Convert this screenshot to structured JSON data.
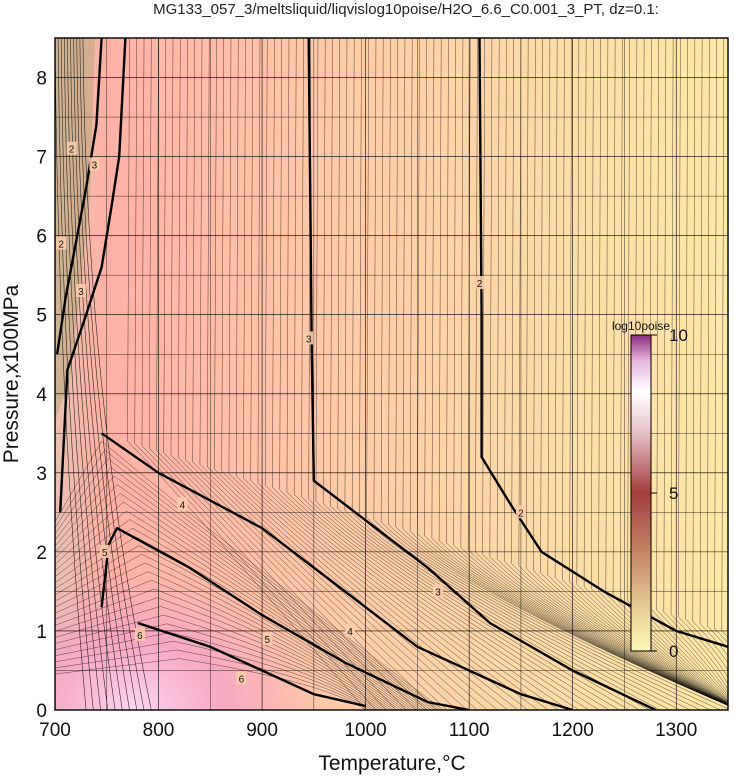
{
  "chart_data": {
    "type": "contour",
    "title": "MG133_057_3/meltsliquid/liqvislog10poise/H2O_6.6_C0.001_3_PT, dz=0.1:",
    "xlabel": "Temperature,°C",
    "ylabel": "Pressure,x100MPa",
    "xlim": [
      700,
      1350
    ],
    "ylim": [
      0,
      8.5
    ],
    "xticks": [
      "700",
      "800",
      "900",
      "1000",
      "1100",
      "1200",
      "1300"
    ],
    "yticks": [
      "0",
      "1",
      "2",
      "3",
      "4",
      "5",
      "6",
      "7",
      "8"
    ],
    "grid": true,
    "colorbar": {
      "label": "log10poise",
      "range": [
        0,
        10
      ],
      "ticks": [
        "0",
        "5",
        "10"
      ],
      "colors": [
        "#f5f0a0",
        "#8a2a2a",
        "#ffffff",
        "#7a1a6a"
      ]
    },
    "major_contours": [
      {
        "level": 2,
        "points": [
          [
            1110,
            8.5
          ],
          [
            1112,
            5.0
          ],
          [
            1112,
            3.2
          ],
          [
            1140,
            2.6
          ],
          [
            1170,
            2.0
          ],
          [
            1230,
            1.5
          ],
          [
            1300,
            1.0
          ],
          [
            1350,
            0.8
          ]
        ]
      },
      {
        "level": 3,
        "points": [
          [
            945,
            8.5
          ],
          [
            948,
            4.5
          ],
          [
            950,
            2.9
          ],
          [
            1000,
            2.4
          ],
          [
            1060,
            1.8
          ],
          [
            1120,
            1.1
          ],
          [
            1200,
            0.5
          ],
          [
            1280,
            0.0
          ]
        ]
      },
      {
        "level": 4,
        "points": [
          [
            745,
            3.5
          ],
          [
            800,
            3.0
          ],
          [
            900,
            2.3
          ],
          [
            970,
            1.6
          ],
          [
            1050,
            0.8
          ],
          [
            1150,
            0.2
          ],
          [
            1200,
            0.0
          ]
        ]
      },
      {
        "level": 5,
        "points": [
          [
            745,
            1.3
          ],
          [
            752,
            2.1
          ],
          [
            760,
            2.3
          ],
          [
            830,
            1.8
          ],
          [
            900,
            1.2
          ],
          [
            980,
            0.6
          ],
          [
            1060,
            0.1
          ],
          [
            1100,
            0.0
          ]
        ]
      },
      {
        "level": 6,
        "points": [
          [
            780,
            1.1
          ],
          [
            850,
            0.8
          ],
          [
            900,
            0.5
          ],
          [
            950,
            0.2
          ],
          [
            1000,
            0.05
          ]
        ]
      },
      {
        "level": 3,
        "points": [
          [
            705,
            2.5
          ],
          [
            712,
            4.3
          ],
          [
            730,
            5.0
          ],
          [
            745,
            5.6
          ],
          [
            755,
            6.4
          ],
          [
            762,
            7.0
          ],
          [
            768,
            8.5
          ]
        ]
      },
      {
        "level": 2,
        "points": [
          [
            702,
            4.5
          ],
          [
            710,
            5.2
          ],
          [
            720,
            5.9
          ],
          [
            730,
            6.6
          ],
          [
            740,
            7.4
          ],
          [
            745,
            8.5
          ]
        ]
      }
    ],
    "contour_labels": [
      {
        "text": "2",
        "x": 1110,
        "y": 5.4
      },
      {
        "text": "2",
        "x": 1150,
        "y": 2.5
      },
      {
        "text": "3",
        "x": 945,
        "y": 4.7
      },
      {
        "text": "3",
        "x": 1070,
        "y": 1.5
      },
      {
        "text": "4",
        "x": 823,
        "y": 2.6
      },
      {
        "text": "4",
        "x": 985,
        "y": 1.0
      },
      {
        "text": "5",
        "x": 748,
        "y": 2.0
      },
      {
        "text": "5",
        "x": 905,
        "y": 0.9
      },
      {
        "text": "6",
        "x": 782,
        "y": 0.95
      },
      {
        "text": "6",
        "x": 880,
        "y": 0.4
      },
      {
        "text": "3",
        "x": 738,
        "y": 6.9
      },
      {
        "text": "2",
        "x": 716,
        "y": 7.1
      },
      {
        "text": "3",
        "x": 725,
        "y": 5.3
      },
      {
        "text": "2",
        "x": 706,
        "y": 5.9
      }
    ]
  }
}
